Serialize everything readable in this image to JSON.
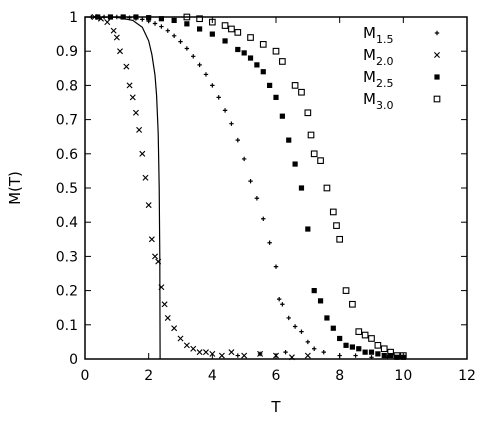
{
  "chart_data": {
    "type": "scatter",
    "xlabel": "T",
    "ylabel": "M(T)",
    "xlim": [
      0,
      12
    ],
    "ylim": [
      0,
      1
    ],
    "xticks": [
      "0",
      "2",
      "4",
      "6",
      "8",
      "10",
      "12"
    ],
    "yticks": [
      "0",
      "0.1",
      "0.2",
      "0.3",
      "0.4",
      "0.5",
      "0.6",
      "0.7",
      "0.8",
      "0.9",
      "1"
    ],
    "grid": false,
    "legend_position": "top-right",
    "series": [
      {
        "name": "M",
        "name_sub": "1.5",
        "marker": "plus",
        "points": [
          [
            0.2,
            1.0
          ],
          [
            0.4,
            1.0
          ],
          [
            0.6,
            1.0
          ],
          [
            0.8,
            1.0
          ],
          [
            1.0,
            1.0
          ],
          [
            1.2,
            0.999
          ],
          [
            1.4,
            0.998
          ],
          [
            1.6,
            0.996
          ],
          [
            1.8,
            0.993
          ],
          [
            2.0,
            0.988
          ],
          [
            2.2,
            0.981
          ],
          [
            2.4,
            0.972
          ],
          [
            2.6,
            0.96
          ],
          [
            2.8,
            0.945
          ],
          [
            3.0,
            0.928
          ],
          [
            3.2,
            0.908
          ],
          [
            3.4,
            0.885
          ],
          [
            3.6,
            0.86
          ],
          [
            3.8,
            0.832
          ],
          [
            4.0,
            0.8
          ],
          [
            4.2,
            0.765
          ],
          [
            4.4,
            0.727
          ],
          [
            4.6,
            0.688
          ],
          [
            4.8,
            0.64
          ],
          [
            5.0,
            0.585
          ],
          [
            5.2,
            0.52
          ],
          [
            5.4,
            0.47
          ],
          [
            5.6,
            0.41
          ],
          [
            5.8,
            0.34
          ],
          [
            6.0,
            0.27
          ],
          [
            6.1,
            0.175
          ],
          [
            6.2,
            0.16
          ],
          [
            6.4,
            0.12
          ],
          [
            6.6,
            0.095
          ],
          [
            6.8,
            0.08
          ],
          [
            7.0,
            0.05
          ],
          [
            6.3,
            0.02
          ],
          [
            5.5,
            0.015
          ],
          [
            4.8,
            0.01
          ],
          [
            7.2,
            0.03
          ],
          [
            7.5,
            0.02
          ],
          [
            8.0,
            0.01
          ],
          [
            8.5,
            0.01
          ],
          [
            9.0,
            0.005
          ],
          [
            9.5,
            0.005
          ],
          [
            10.0,
            0.005
          ]
        ]
      },
      {
        "name": "M",
        "name_sub": "2.0",
        "marker": "cross",
        "points": [
          [
            0.3,
            1.0
          ],
          [
            0.5,
            0.995
          ],
          [
            0.7,
            0.985
          ],
          [
            0.9,
            0.96
          ],
          [
            1.0,
            0.94
          ],
          [
            1.1,
            0.9
          ],
          [
            1.3,
            0.855
          ],
          [
            1.4,
            0.8
          ],
          [
            1.5,
            0.765
          ],
          [
            1.6,
            0.72
          ],
          [
            1.7,
            0.67
          ],
          [
            1.8,
            0.6
          ],
          [
            1.9,
            0.53
          ],
          [
            2.0,
            0.45
          ],
          [
            2.1,
            0.35
          ],
          [
            2.2,
            0.3
          ],
          [
            2.3,
            0.285
          ],
          [
            2.4,
            0.21
          ],
          [
            2.5,
            0.16
          ],
          [
            2.6,
            0.12
          ],
          [
            2.8,
            0.09
          ],
          [
            3.0,
            0.06
          ],
          [
            3.2,
            0.04
          ],
          [
            3.4,
            0.03
          ],
          [
            3.6,
            0.02
          ],
          [
            3.8,
            0.02
          ],
          [
            4.0,
            0.015
          ],
          [
            4.3,
            0.01
          ],
          [
            4.6,
            0.02
          ],
          [
            5.0,
            0.01
          ],
          [
            5.5,
            0.015
          ],
          [
            6.0,
            0.01
          ],
          [
            6.5,
            0.005
          ],
          [
            7.0,
            0.01
          ]
        ]
      },
      {
        "name": "M",
        "name_sub": "2.5",
        "marker": "filled-square",
        "points": [
          [
            0.4,
            1.0
          ],
          [
            0.8,
            1.0
          ],
          [
            1.2,
            1.0
          ],
          [
            1.6,
            1.0
          ],
          [
            2.0,
            0.998
          ],
          [
            2.4,
            0.995
          ],
          [
            2.8,
            0.99
          ],
          [
            3.2,
            0.98
          ],
          [
            3.6,
            0.965
          ],
          [
            4.0,
            0.95
          ],
          [
            4.4,
            0.93
          ],
          [
            4.8,
            0.905
          ],
          [
            5.0,
            0.895
          ],
          [
            5.2,
            0.88
          ],
          [
            5.4,
            0.86
          ],
          [
            5.6,
            0.84
          ],
          [
            5.8,
            0.8
          ],
          [
            6.0,
            0.765
          ],
          [
            6.2,
            0.71
          ],
          [
            6.4,
            0.64
          ],
          [
            6.6,
            0.57
          ],
          [
            6.8,
            0.5
          ],
          [
            7.0,
            0.38
          ],
          [
            7.2,
            0.2
          ],
          [
            7.4,
            0.17
          ],
          [
            7.6,
            0.12
          ],
          [
            7.8,
            0.09
          ],
          [
            8.0,
            0.06
          ],
          [
            8.2,
            0.04
          ],
          [
            8.4,
            0.035
          ],
          [
            8.6,
            0.03
          ],
          [
            8.8,
            0.02
          ],
          [
            9.0,
            0.02
          ],
          [
            9.2,
            0.015
          ],
          [
            9.4,
            0.01
          ],
          [
            9.6,
            0.01
          ],
          [
            9.8,
            0.005
          ],
          [
            10.0,
            0.005
          ]
        ]
      },
      {
        "name": "M",
        "name_sub": "3.0",
        "marker": "open-square",
        "points": [
          [
            3.2,
            1.0
          ],
          [
            3.6,
            0.995
          ],
          [
            4.0,
            0.985
          ],
          [
            4.4,
            0.975
          ],
          [
            4.6,
            0.965
          ],
          [
            4.8,
            0.955
          ],
          [
            5.2,
            0.94
          ],
          [
            5.6,
            0.92
          ],
          [
            6.0,
            0.9
          ],
          [
            6.2,
            0.87
          ],
          [
            6.6,
            0.8
          ],
          [
            6.8,
            0.78
          ],
          [
            7.0,
            0.72
          ],
          [
            7.1,
            0.655
          ],
          [
            7.2,
            0.6
          ],
          [
            7.4,
            0.58
          ],
          [
            7.6,
            0.5
          ],
          [
            7.8,
            0.43
          ],
          [
            7.9,
            0.39
          ],
          [
            8.0,
            0.35
          ],
          [
            8.2,
            0.2
          ],
          [
            8.4,
            0.16
          ],
          [
            8.6,
            0.08
          ],
          [
            8.8,
            0.07
          ],
          [
            9.0,
            0.06
          ],
          [
            9.2,
            0.04
          ],
          [
            9.4,
            0.03
          ],
          [
            9.6,
            0.02
          ],
          [
            9.8,
            0.01
          ],
          [
            10.0,
            0.01
          ]
        ]
      },
      {
        "name": "",
        "marker": "none",
        "line": true,
        "points": [
          [
            0.0,
            1.0
          ],
          [
            1.0,
            0.999
          ],
          [
            1.5,
            0.99
          ],
          [
            1.8,
            0.97
          ],
          [
            2.0,
            0.93
          ],
          [
            2.1,
            0.89
          ],
          [
            2.2,
            0.83
          ],
          [
            2.25,
            0.77
          ],
          [
            2.3,
            0.66
          ],
          [
            2.33,
            0.5
          ],
          [
            2.35,
            0.3
          ],
          [
            2.36,
            0.0
          ]
        ]
      }
    ]
  }
}
